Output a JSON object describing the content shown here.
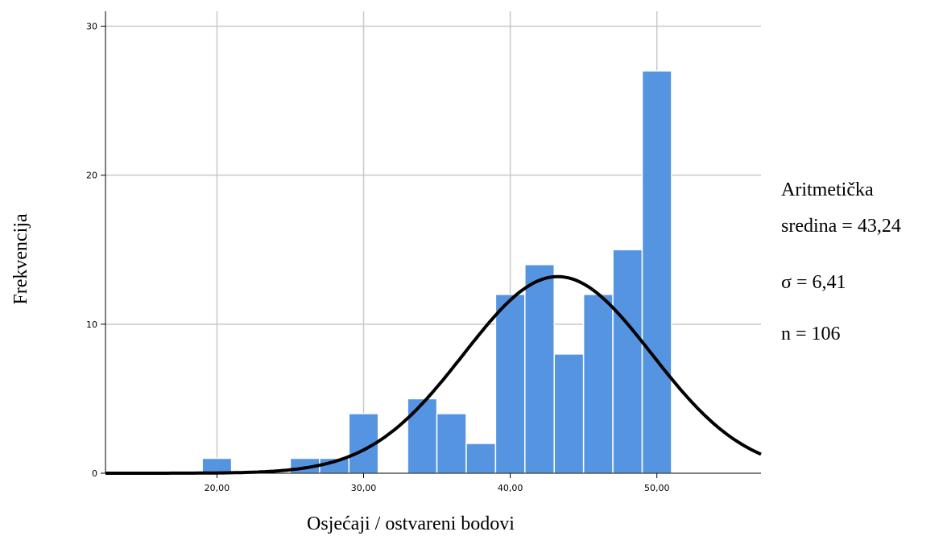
{
  "chart_data": {
    "type": "bar",
    "subtype": "histogram",
    "xlabel": "Osjećaji / ostvareni bodovi",
    "ylabel": "Frekvencija",
    "x_ticks": [
      "20,00",
      "30,00",
      "40,00",
      "50,00"
    ],
    "x_tick_values": [
      20,
      30,
      40,
      50
    ],
    "y_ticks": [
      "0",
      "10",
      "20",
      "30"
    ],
    "y_tick_values": [
      0,
      10,
      20,
      30
    ],
    "xlim": [
      12.4,
      57.1
    ],
    "ylim": [
      0,
      31
    ],
    "grid": true,
    "bins": [
      {
        "x0": 19,
        "x1": 21,
        "count": 1
      },
      {
        "x0": 25,
        "x1": 27,
        "count": 1
      },
      {
        "x0": 27,
        "x1": 29,
        "count": 1
      },
      {
        "x0": 29,
        "x1": 31,
        "count": 4
      },
      {
        "x0": 33,
        "x1": 35,
        "count": 5
      },
      {
        "x0": 35,
        "x1": 37,
        "count": 4
      },
      {
        "x0": 37,
        "x1": 39,
        "count": 2
      },
      {
        "x0": 39,
        "x1": 41,
        "count": 12
      },
      {
        "x0": 41,
        "x1": 43,
        "count": 14
      },
      {
        "x0": 43,
        "x1": 45,
        "count": 8
      },
      {
        "x0": 45,
        "x1": 47,
        "count": 12
      },
      {
        "x0": 47,
        "x1": 49,
        "count": 15
      },
      {
        "x0": 49,
        "x1": 51,
        "count": 27
      }
    ],
    "normal_curve": {
      "mean": 43.24,
      "sd": 6.41,
      "n": 106
    },
    "bar_color": "#5594e0",
    "curve_color": "#000000"
  },
  "stats": {
    "mean_line1": "Aritmetička",
    "mean_line2": "sredina = 43,24",
    "sigma": "σ = 6,41",
    "n": "n = 106"
  }
}
